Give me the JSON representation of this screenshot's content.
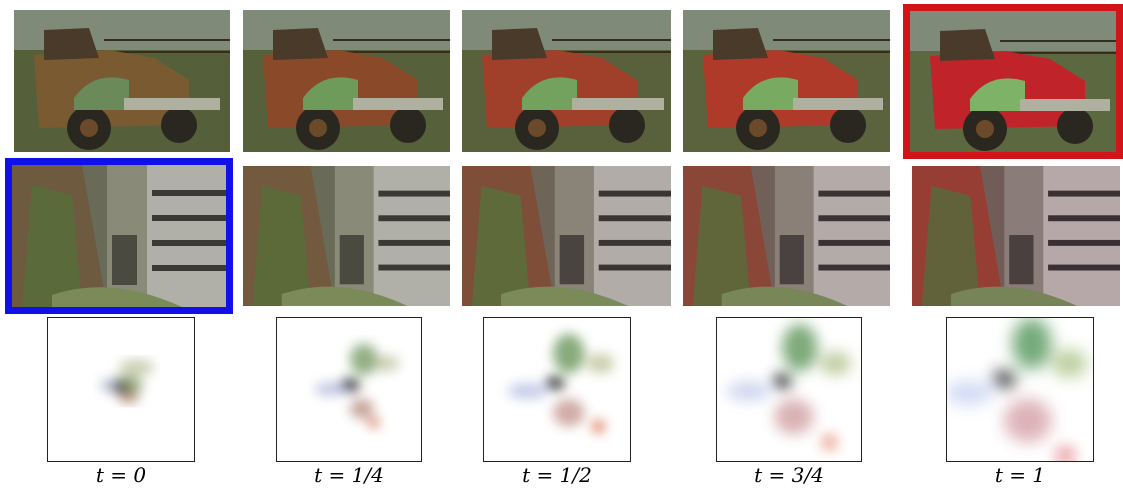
{
  "figure": {
    "captions": [
      "t = 0",
      "t = 1/4",
      "t = 1/2",
      "t = 3/4",
      "t = 1"
    ],
    "row1": {
      "subject": "vintage truck on grass field with fence",
      "highlighted_index": 4,
      "highlight_color": "#d0141a"
    },
    "row2": {
      "subject": "abandoned building with overgrown cliff",
      "highlighted_index": 0,
      "highlight_color": "#1010e8"
    },
    "row3": {
      "subject": "color distribution plots"
    },
    "truck_colors": [
      "#7a5a30",
      "#8a4a2a",
      "#a0402a",
      "#b03a2a",
      "#c0242a"
    ],
    "histogram_spread": [
      0.35,
      0.55,
      0.75,
      0.9,
      1.05
    ]
  }
}
